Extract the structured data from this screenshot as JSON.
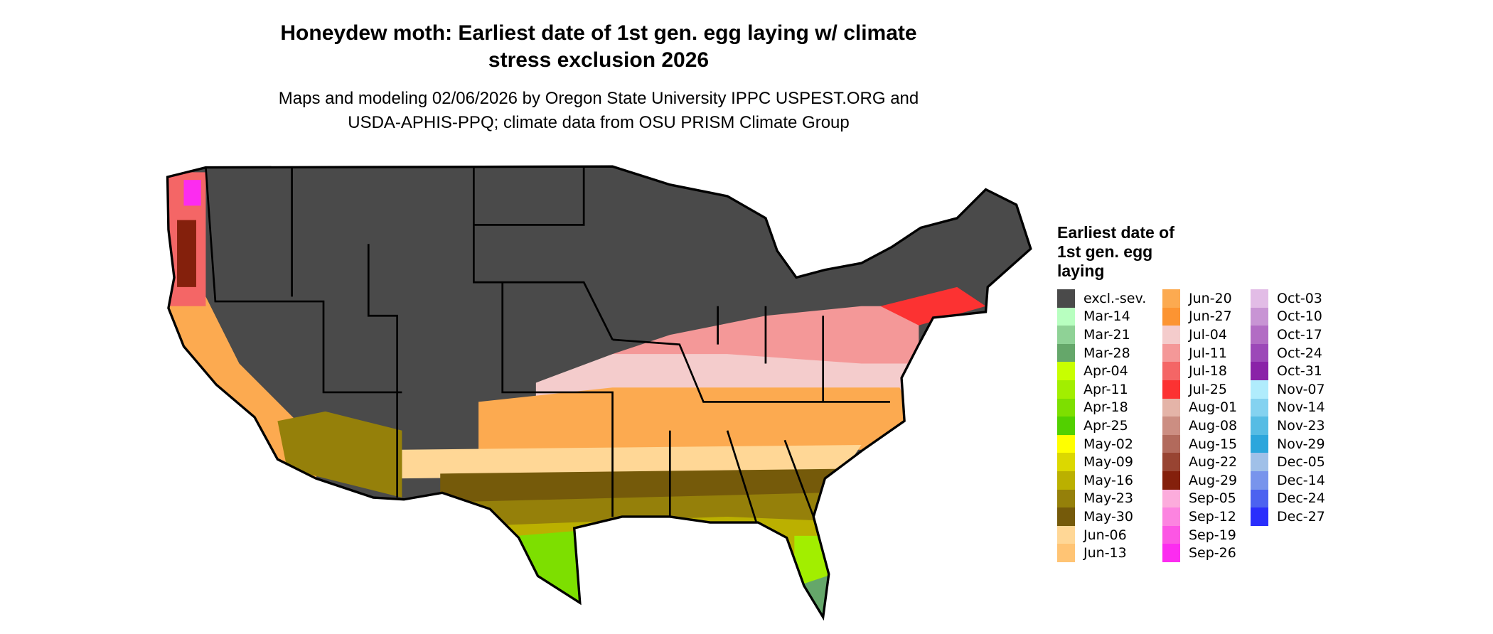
{
  "title": {
    "line1": "Honeydew moth: Earliest date of 1st gen. egg laying w/ climate",
    "line2": "stress exclusion 2026"
  },
  "subtitle": {
    "line1": "Maps and modeling 02/06/2026 by Oregon State University IPPC USPEST.ORG and",
    "line2": "USDA-APHIS-PPQ; climate data from OSU PRISM Climate Group"
  },
  "legend": {
    "title": "Earliest date of 1st gen. egg laying",
    "items": [
      {
        "label": "excl.-sev.",
        "color": "#4a4a4a"
      },
      {
        "label": "Mar-14",
        "color": "#b8ffc0"
      },
      {
        "label": "Mar-21",
        "color": "#8fd296"
      },
      {
        "label": "Mar-28",
        "color": "#65a76a"
      },
      {
        "label": "Apr-04",
        "color": "#c8ff00"
      },
      {
        "label": "Apr-11",
        "color": "#a2ee00"
      },
      {
        "label": "Apr-18",
        "color": "#7ddf00"
      },
      {
        "label": "Apr-25",
        "color": "#52d000"
      },
      {
        "label": "May-02",
        "color": "#ffff00"
      },
      {
        "label": "May-09",
        "color": "#dcd800"
      },
      {
        "label": "May-16",
        "color": "#bbb000"
      },
      {
        "label": "May-23",
        "color": "#95800a"
      },
      {
        "label": "May-30",
        "color": "#755a0a"
      },
      {
        "label": "Jun-06",
        "color": "#ffd796"
      },
      {
        "label": "Jun-13",
        "color": "#ffc474"
      },
      {
        "label": "Jun-20",
        "color": "#fcaa50"
      },
      {
        "label": "Jun-27",
        "color": "#fc9432"
      },
      {
        "label": "Jul-04",
        "color": "#f4cccc"
      },
      {
        "label": "Jul-11",
        "color": "#f49898"
      },
      {
        "label": "Jul-18",
        "color": "#f46666"
      },
      {
        "label": "Jul-25",
        "color": "#fc3232"
      },
      {
        "label": "Aug-01",
        "color": "#e4b4a8"
      },
      {
        "label": "Aug-08",
        "color": "#cc8e82"
      },
      {
        "label": "Aug-15",
        "color": "#b26a5c"
      },
      {
        "label": "Aug-22",
        "color": "#984432"
      },
      {
        "label": "Aug-29",
        "color": "#84200c"
      },
      {
        "label": "Sep-05",
        "color": "#fcacdc"
      },
      {
        "label": "Sep-12",
        "color": "#fc84e0"
      },
      {
        "label": "Sep-19",
        "color": "#fc56e4"
      },
      {
        "label": "Sep-26",
        "color": "#fc2cf0"
      },
      {
        "label": "Oct-03",
        "color": "#e2bce6"
      },
      {
        "label": "Oct-10",
        "color": "#c894d4"
      },
      {
        "label": "Oct-17",
        "color": "#b26cc4"
      },
      {
        "label": "Oct-24",
        "color": "#9c48b8"
      },
      {
        "label": "Oct-31",
        "color": "#8a22a8"
      },
      {
        "label": "Nov-07",
        "color": "#b0ecfc"
      },
      {
        "label": "Nov-14",
        "color": "#84d2f0"
      },
      {
        "label": "Nov-23",
        "color": "#56bce4"
      },
      {
        "label": "Nov-29",
        "color": "#2ca6dc"
      },
      {
        "label": "Dec-05",
        "color": "#a0c0e8"
      },
      {
        "label": "Dec-14",
        "color": "#7894ec"
      },
      {
        "label": "Dec-24",
        "color": "#4c62f0"
      },
      {
        "label": "Dec-27",
        "color": "#2a2efc"
      }
    ]
  }
}
